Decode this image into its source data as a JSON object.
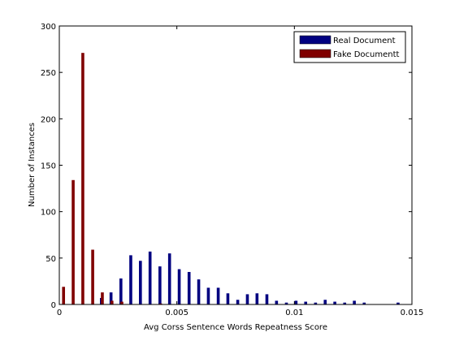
{
  "chart_data": {
    "type": "bar",
    "title": "",
    "xlabel": "Avg Corss Sentence Words Repeatness Score",
    "ylabel": "Number of Instances",
    "xlim": [
      0,
      0.015
    ],
    "ylim": [
      0,
      300
    ],
    "x_ticks": [
      0,
      0.005,
      0.01,
      0.015
    ],
    "x_tick_labels": [
      "0",
      "0.005",
      "0.01",
      "0.015"
    ],
    "y_ticks": [
      0,
      50,
      100,
      150,
      200,
      250,
      300
    ],
    "y_tick_labels": [
      "0",
      "50",
      "100",
      "150",
      "200",
      "250",
      "300"
    ],
    "grid": false,
    "legend_position": "top-right",
    "series": [
      {
        "name": "Real Document",
        "color": "#000080",
        "x": [
          0.00179,
          0.0022,
          0.00262,
          0.00304,
          0.00345,
          0.00386,
          0.00428,
          0.00469,
          0.0051,
          0.00552,
          0.00593,
          0.00634,
          0.00676,
          0.00717,
          0.00759,
          0.008,
          0.00841,
          0.00883,
          0.00924,
          0.00966,
          0.01007,
          0.01048,
          0.0109,
          0.01131,
          0.01172,
          0.01214,
          0.01255,
          0.01297,
          0.01441
        ],
        "values": [
          7,
          13,
          28,
          53,
          47,
          57,
          41,
          55,
          38,
          35,
          27,
          18,
          18,
          12,
          5,
          11,
          12,
          11,
          4,
          2,
          4,
          3,
          2,
          5,
          3,
          2,
          4,
          2,
          2
        ]
      },
      {
        "name": "Fake Documentt",
        "color": "#800000",
        "x": [
          0.00018,
          0.00059,
          0.001,
          0.00142,
          0.00183,
          0.00224,
          0.00266,
          0.00431
        ],
        "values": [
          19,
          134,
          271,
          59,
          13,
          4,
          3,
          1
        ]
      }
    ]
  }
}
